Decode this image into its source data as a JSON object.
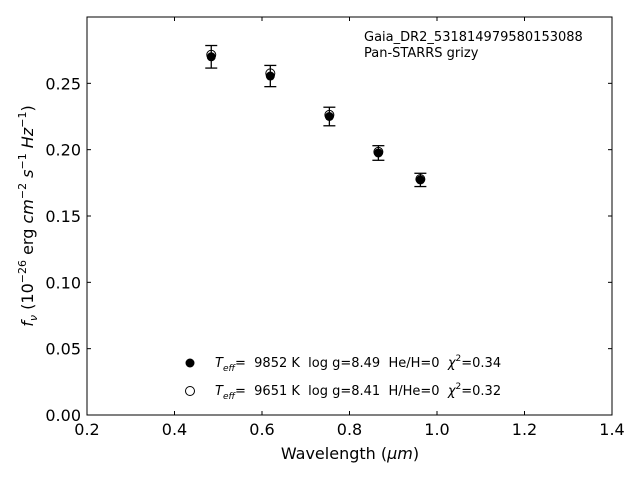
{
  "chart_data": {
    "type": "scatter",
    "annotations": [
      "Gaia_DR2_531814979580153088",
      "Pan-STARRS grizy"
    ],
    "xlabel": {
      "prefix": "Wavelength (",
      "unit": "μm",
      "suffix": ")"
    },
    "ylabel": {
      "f": "f",
      "f_sub": "ν",
      "open": " (10",
      "exp1": "−26",
      "mid": " erg ",
      "cm": "cm",
      "exp2": "−2",
      "s": " s",
      "exp3": "−1",
      "hz": " Hz",
      "exp4": "−1",
      "close": ")"
    },
    "xlim": [
      0.2,
      1.4
    ],
    "ylim": [
      0.0,
      0.3
    ],
    "x_ticks": [
      0.2,
      0.4,
      0.6,
      0.8,
      1.0,
      1.2,
      1.4
    ],
    "x_tick_labels": [
      "0.2",
      "0.4",
      "0.6",
      "0.8",
      "1.0",
      "1.2",
      "1.4"
    ],
    "y_ticks": [
      0.0,
      0.05,
      0.1,
      0.15,
      0.2,
      0.25
    ],
    "y_tick_labels": [
      "0.00",
      "0.05",
      "0.10",
      "0.15",
      "0.20",
      "0.25"
    ],
    "grid": false,
    "series": [
      {
        "marker": "filled-circle",
        "color": "#000000",
        "x": [
          0.484,
          0.619,
          0.754,
          0.866,
          0.962
        ],
        "y": [
          0.27,
          0.2555,
          0.225,
          0.1975,
          0.1772
        ],
        "yerr": [
          0.0085,
          0.008,
          0.007,
          0.0055,
          0.005
        ],
        "legend": {
          "T": "T",
          "T_sub": "eff",
          "text": "=  9852 K  log g=8.49  He/H=0  ",
          "chi": "χ",
          "chi_exp": "2",
          "chi_val": "=0.34"
        }
      },
      {
        "marker": "open-circle",
        "color": "#000000",
        "x": [
          0.484,
          0.619,
          0.754,
          0.866,
          0.962
        ],
        "y": [
          0.2715,
          0.2575,
          0.2262,
          0.1983,
          0.1778
        ],
        "legend": {
          "T": "T",
          "T_sub": "eff",
          "text": "=  9651 K  log g=8.41  H/He=0  ",
          "chi": "χ",
          "chi_exp": "2",
          "chi_val": "=0.32"
        }
      }
    ]
  }
}
